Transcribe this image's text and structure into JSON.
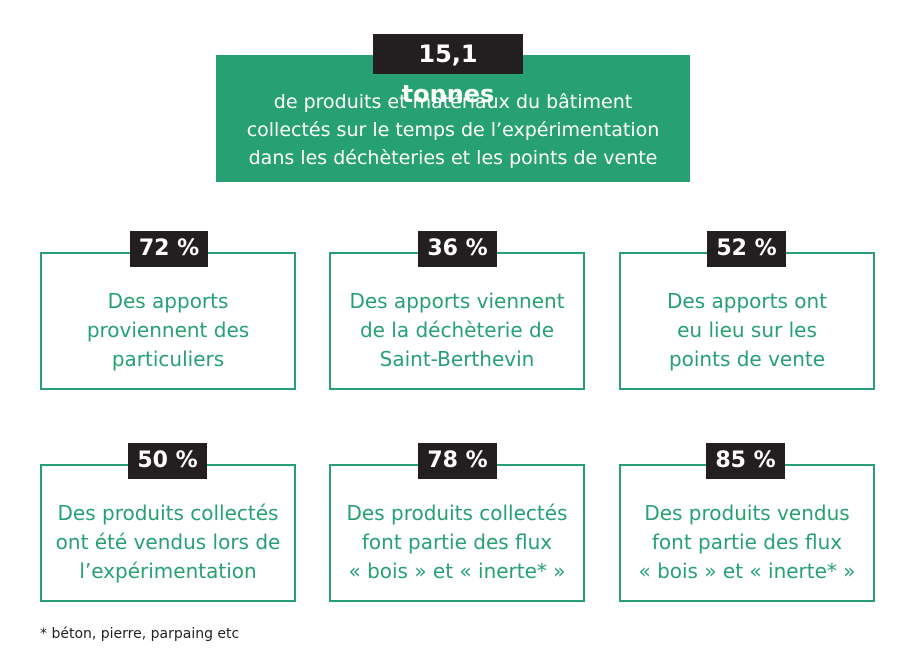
{
  "headline": {
    "value": "15,1 tonnes",
    "lines": [
      "de produits et matériaux du bâtiment",
      "collectés sur le temps de l’expérimentation",
      "dans les déchèteries et les points de vente"
    ]
  },
  "stats": [
    {
      "value": "72 %",
      "lines": [
        "Des apports",
        "proviennent des",
        "particuliers"
      ]
    },
    {
      "value": "36 %",
      "lines": [
        "Des apports viennent",
        "de la déchèterie de",
        "Saint-Berthevin"
      ]
    },
    {
      "value": "52 %",
      "lines": [
        "Des apports ont",
        "eu lieu sur les",
        "points de vente"
      ]
    },
    {
      "value": "50 %",
      "lines": [
        "Des produits collectés",
        "ont été vendus lors de",
        "l’expérimentation"
      ]
    },
    {
      "value": "78 %",
      "lines": [
        "Des produits collectés",
        "font partie des flux",
        "« bois » et « inerte* »"
      ]
    },
    {
      "value": "85 %",
      "lines": [
        "Des produits vendus",
        "font partie des flux",
        "« bois » et « inerte* »"
      ]
    }
  ],
  "footnote": "* béton, pierre, parpaing etc",
  "colors": {
    "accent_green": "#27a173",
    "badge_dark": "#231f20",
    "background": "#ffffff"
  }
}
